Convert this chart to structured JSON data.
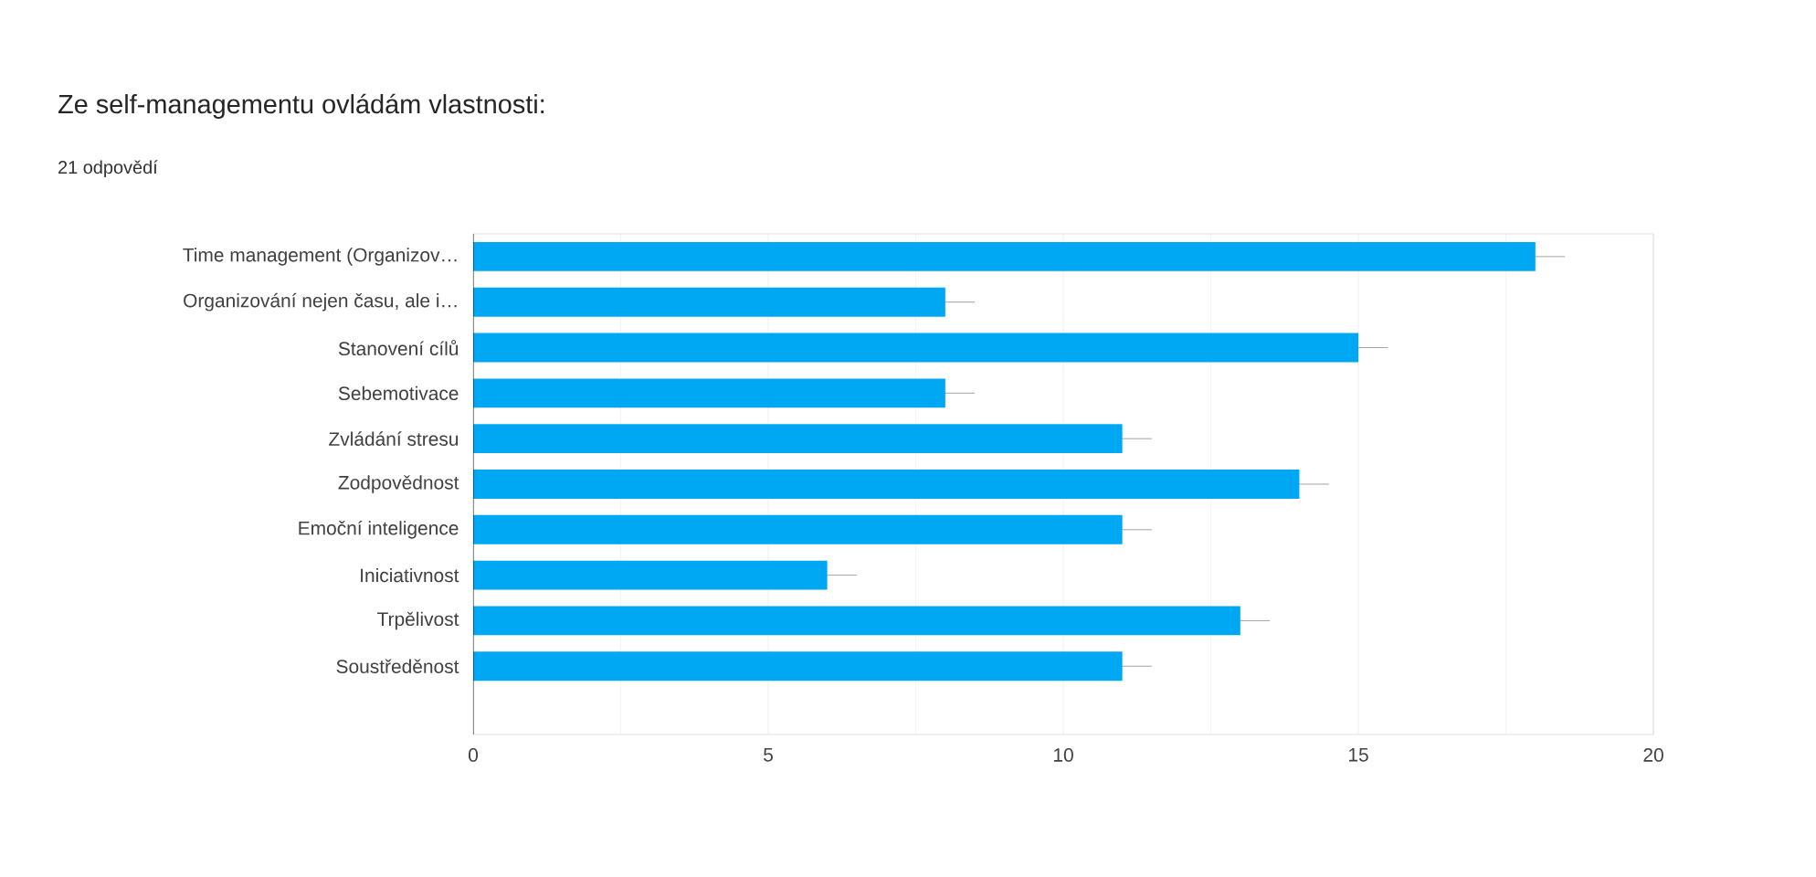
{
  "chart_data": {
    "type": "bar",
    "orientation": "horizontal",
    "title": "Ze self-managementu ovládám vlastnosti:",
    "subtitle": "21 odpovědí",
    "categories": [
      "Time management (Organizov…",
      "Organizování nejen času, ale i…",
      "Stanovení cílů",
      "Sebemotivace",
      "Zvládání stresu",
      "Zodpovědnost",
      "Emoční inteligence",
      "Iniciativnost",
      "Trpělivost",
      "Soustředěnost"
    ],
    "values": [
      18,
      8,
      15,
      8,
      11,
      14,
      11,
      6,
      13,
      11
    ],
    "errors": [
      0.5,
      0.5,
      0.5,
      0.5,
      0.5,
      0.5,
      0.5,
      0.5,
      0.5,
      0.5
    ],
    "color": "#00a8f3",
    "xlim": [
      0,
      20
    ],
    "xticks": [
      0,
      5,
      10,
      15,
      20
    ],
    "grid": "x"
  }
}
